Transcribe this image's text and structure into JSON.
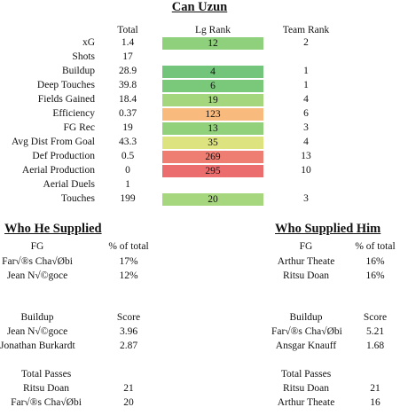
{
  "player_name": "Can Uzun",
  "stats_table": {
    "columns": [
      "Total",
      "Lg Rank",
      "Team Rank"
    ],
    "rows": [
      {
        "stat": "xG",
        "total": "1.4",
        "lg_rank": "12",
        "team_rank": "2",
        "color": "#8fd07c"
      },
      {
        "stat": "Shots",
        "total": "17",
        "lg_rank": "",
        "team_rank": "",
        "color": ""
      },
      {
        "stat": "Buildup",
        "total": "28.9",
        "lg_rank": "4",
        "team_rank": "1",
        "color": "#72c57a"
      },
      {
        "stat": "Deep Touches",
        "total": "39.8",
        "lg_rank": "6",
        "team_rank": "1",
        "color": "#7ac97b"
      },
      {
        "stat": "Fields Gained",
        "total": "18.4",
        "lg_rank": "19",
        "team_rank": "4",
        "color": "#a3d67d"
      },
      {
        "stat": "Efficiency",
        "total": "0.37",
        "lg_rank": "123",
        "team_rank": "6",
        "color": "#f8bb7d"
      },
      {
        "stat": "FG Rec",
        "total": "19",
        "lg_rank": "13",
        "team_rank": "3",
        "color": "#92d17c"
      },
      {
        "stat": "Avg Dist From Goal",
        "total": "43.3",
        "lg_rank": "35",
        "team_rank": "4",
        "color": "#dde47f"
      },
      {
        "stat": "Def Production",
        "total": "0.5",
        "lg_rank": "269",
        "team_rank": "13",
        "color": "#ee7d72"
      },
      {
        "stat": "Aerial Production",
        "total": "0",
        "lg_rank": "295",
        "team_rank": "10",
        "color": "#ec6d6e"
      },
      {
        "stat": "Aerial Duels",
        "total": "1",
        "lg_rank": "",
        "team_rank": "",
        "color": ""
      },
      {
        "stat": "Touches",
        "total": "199",
        "lg_rank": "20",
        "team_rank": "3",
        "color": "#a6d77e"
      }
    ]
  },
  "who_he_supplied": {
    "title": "Who He Supplied",
    "fg": {
      "headers": [
        "FG",
        "% of total"
      ],
      "rows": [
        [
          "Far√®s Cha√Øbi",
          "17%"
        ],
        [
          "Jean N√©goce",
          "12%"
        ]
      ]
    },
    "buildup": {
      "headers": [
        "Buildup",
        "Score"
      ],
      "rows": [
        [
          "Jean N√©goce",
          "3.96"
        ],
        [
          "Jonathan Burkardt",
          "2.87"
        ]
      ]
    },
    "passes": {
      "headers": [
        "Total Passes",
        ""
      ],
      "rows": [
        [
          "Ritsu Doan",
          "21"
        ],
        [
          "Far√®s Cha√Øbi",
          "20"
        ]
      ]
    }
  },
  "who_supplied_him": {
    "title": "Who Supplied Him",
    "fg": {
      "headers": [
        "FG",
        "% of total"
      ],
      "rows": [
        [
          "Arthur Theate",
          "16%"
        ],
        [
          "Ritsu Doan",
          "16%"
        ]
      ]
    },
    "buildup": {
      "headers": [
        "Buildup",
        "Score"
      ],
      "rows": [
        [
          "Far√®s Cha√Øbi",
          "5.21"
        ],
        [
          "Ansgar Knauff",
          "1.68"
        ]
      ]
    },
    "passes": {
      "headers": [
        "Total Passes",
        ""
      ],
      "rows": [
        [
          "Ritsu Doan",
          "21"
        ],
        [
          "Arthur Theate",
          "16"
        ]
      ]
    }
  }
}
